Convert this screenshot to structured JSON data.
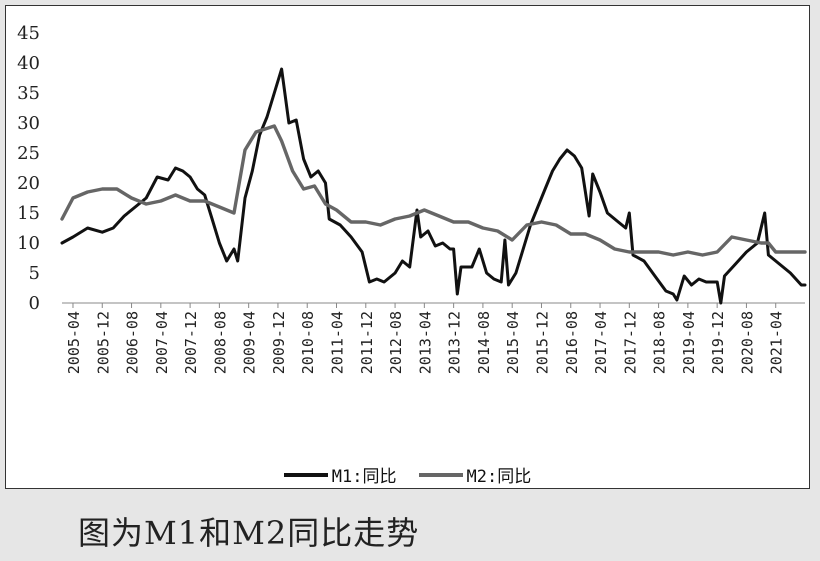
{
  "caption": "图为M1和M2同比走势",
  "chart_data": {
    "type": "line",
    "title": "",
    "xlabel": "",
    "ylabel": "",
    "ylim": [
      0,
      45
    ],
    "yticks": [
      0,
      5,
      10,
      15,
      20,
      25,
      30,
      35,
      40,
      45
    ],
    "x_range": [
      "2005-01",
      "2021-12"
    ],
    "xticks": [
      "2005-04",
      "2005-12",
      "2006-08",
      "2007-04",
      "2007-12",
      "2008-08",
      "2009-04",
      "2009-12",
      "2010-08",
      "2011-04",
      "2011-12",
      "2012-08",
      "2013-04",
      "2013-12",
      "2014-08",
      "2015-04",
      "2015-12",
      "2016-08",
      "2017-04",
      "2017-12",
      "2018-08",
      "2019-04",
      "2019-12",
      "2020-08",
      "2021-04"
    ],
    "grid": false,
    "legend_position": "bottom",
    "series": [
      {
        "name": "M1:同比",
        "color": "#111111",
        "points": [
          [
            "2005-01",
            10.0
          ],
          [
            "2005-04",
            11.0
          ],
          [
            "2005-08",
            12.5
          ],
          [
            "2005-12",
            11.8
          ],
          [
            "2006-03",
            12.5
          ],
          [
            "2006-06",
            14.5
          ],
          [
            "2006-09",
            16.0
          ],
          [
            "2006-12",
            17.5
          ],
          [
            "2007-03",
            21.0
          ],
          [
            "2007-06",
            20.5
          ],
          [
            "2007-08",
            22.5
          ],
          [
            "2007-10",
            22.0
          ],
          [
            "2007-12",
            21.0
          ],
          [
            "2008-02",
            19.0
          ],
          [
            "2008-04",
            18.0
          ],
          [
            "2008-06",
            14.0
          ],
          [
            "2008-08",
            10.0
          ],
          [
            "2008-10",
            7.0
          ],
          [
            "2008-12",
            9.0
          ],
          [
            "2009-01",
            7.0
          ],
          [
            "2009-03",
            17.5
          ],
          [
            "2009-05",
            22.0
          ],
          [
            "2009-07",
            28.0
          ],
          [
            "2009-09",
            31.0
          ],
          [
            "2009-11",
            35.0
          ],
          [
            "2010-01",
            39.0
          ],
          [
            "2010-03",
            30.0
          ],
          [
            "2010-05",
            30.5
          ],
          [
            "2010-07",
            24.0
          ],
          [
            "2010-09",
            21.0
          ],
          [
            "2010-11",
            22.0
          ],
          [
            "2011-01",
            20.0
          ],
          [
            "2011-02",
            14.0
          ],
          [
            "2011-05",
            13.0
          ],
          [
            "2011-08",
            11.0
          ],
          [
            "2011-11",
            8.5
          ],
          [
            "2012-01",
            3.5
          ],
          [
            "2012-03",
            4.0
          ],
          [
            "2012-05",
            3.5
          ],
          [
            "2012-08",
            5.0
          ],
          [
            "2012-10",
            7.0
          ],
          [
            "2012-12",
            6.0
          ],
          [
            "2013-02",
            15.5
          ],
          [
            "2013-03",
            11.0
          ],
          [
            "2013-05",
            12.0
          ],
          [
            "2013-07",
            9.5
          ],
          [
            "2013-09",
            10.0
          ],
          [
            "2013-11",
            9.0
          ],
          [
            "2013-12",
            9.0
          ],
          [
            "2014-01",
            1.5
          ],
          [
            "2014-02",
            6.0
          ],
          [
            "2014-05",
            6.0
          ],
          [
            "2014-07",
            9.0
          ],
          [
            "2014-09",
            5.0
          ],
          [
            "2014-11",
            4.0
          ],
          [
            "2015-01",
            3.5
          ],
          [
            "2015-02",
            10.5
          ],
          [
            "2015-03",
            3.0
          ],
          [
            "2015-05",
            5.0
          ],
          [
            "2015-07",
            9.0
          ],
          [
            "2015-09",
            13.0
          ],
          [
            "2015-11",
            16.0
          ],
          [
            "2016-01",
            19.0
          ],
          [
            "2016-03",
            22.0
          ],
          [
            "2016-05",
            24.0
          ],
          [
            "2016-07",
            25.5
          ],
          [
            "2016-09",
            24.5
          ],
          [
            "2016-11",
            22.5
          ],
          [
            "2017-01",
            14.5
          ],
          [
            "2017-02",
            21.5
          ],
          [
            "2017-04",
            18.5
          ],
          [
            "2017-06",
            15.0
          ],
          [
            "2017-09",
            13.5
          ],
          [
            "2017-11",
            12.5
          ],
          [
            "2017-12",
            15.0
          ],
          [
            "2018-01",
            8.0
          ],
          [
            "2018-04",
            7.0
          ],
          [
            "2018-07",
            4.5
          ],
          [
            "2018-10",
            2.0
          ],
          [
            "2018-12",
            1.5
          ],
          [
            "2019-01",
            0.5
          ],
          [
            "2019-03",
            4.5
          ],
          [
            "2019-05",
            3.0
          ],
          [
            "2019-07",
            4.0
          ],
          [
            "2019-09",
            3.5
          ],
          [
            "2019-11",
            3.5
          ],
          [
            "2019-12",
            3.5
          ],
          [
            "2020-01",
            0.0
          ],
          [
            "2020-02",
            4.5
          ],
          [
            "2020-05",
            6.5
          ],
          [
            "2020-08",
            8.5
          ],
          [
            "2020-11",
            10.0
          ],
          [
            "2021-01",
            15.0
          ],
          [
            "2021-02",
            8.0
          ],
          [
            "2021-05",
            6.5
          ],
          [
            "2021-08",
            5.0
          ],
          [
            "2021-11",
            3.0
          ],
          [
            "2021-12",
            3.0
          ]
        ]
      },
      {
        "name": "M2:同比",
        "color": "#666666",
        "points": [
          [
            "2005-01",
            14.0
          ],
          [
            "2005-04",
            17.5
          ],
          [
            "2005-08",
            18.5
          ],
          [
            "2005-12",
            19.0
          ],
          [
            "2006-04",
            19.0
          ],
          [
            "2006-08",
            17.5
          ],
          [
            "2006-12",
            16.5
          ],
          [
            "2007-04",
            17.0
          ],
          [
            "2007-08",
            18.0
          ],
          [
            "2007-12",
            17.0
          ],
          [
            "2008-04",
            17.0
          ],
          [
            "2008-08",
            16.0
          ],
          [
            "2008-12",
            15.0
          ],
          [
            "2009-03",
            25.5
          ],
          [
            "2009-06",
            28.5
          ],
          [
            "2009-11",
            29.5
          ],
          [
            "2010-01",
            27.0
          ],
          [
            "2010-04",
            22.0
          ],
          [
            "2010-07",
            19.0
          ],
          [
            "2010-10",
            19.5
          ],
          [
            "2011-01",
            16.5
          ],
          [
            "2011-04",
            15.5
          ],
          [
            "2011-08",
            13.5
          ],
          [
            "2011-12",
            13.5
          ],
          [
            "2012-04",
            13.0
          ],
          [
            "2012-08",
            14.0
          ],
          [
            "2012-12",
            14.5
          ],
          [
            "2013-04",
            15.5
          ],
          [
            "2013-08",
            14.5
          ],
          [
            "2013-12",
            13.5
          ],
          [
            "2014-04",
            13.5
          ],
          [
            "2014-08",
            12.5
          ],
          [
            "2014-12",
            12.0
          ],
          [
            "2015-04",
            10.5
          ],
          [
            "2015-08",
            13.0
          ],
          [
            "2015-12",
            13.5
          ],
          [
            "2016-04",
            13.0
          ],
          [
            "2016-08",
            11.5
          ],
          [
            "2016-12",
            11.5
          ],
          [
            "2017-04",
            10.5
          ],
          [
            "2017-08",
            9.0
          ],
          [
            "2017-12",
            8.5
          ],
          [
            "2018-04",
            8.5
          ],
          [
            "2018-08",
            8.5
          ],
          [
            "2018-12",
            8.0
          ],
          [
            "2019-04",
            8.5
          ],
          [
            "2019-08",
            8.0
          ],
          [
            "2019-12",
            8.5
          ],
          [
            "2020-04",
            11.0
          ],
          [
            "2020-08",
            10.5
          ],
          [
            "2020-12",
            10.0
          ],
          [
            "2021-02",
            10.0
          ],
          [
            "2021-04",
            8.5
          ],
          [
            "2021-08",
            8.5
          ],
          [
            "2021-12",
            8.5
          ]
        ]
      }
    ]
  }
}
